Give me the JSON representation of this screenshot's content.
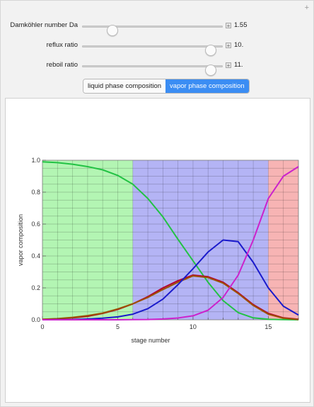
{
  "controls": {
    "damkohler": {
      "label": "Damköhler number Da",
      "value": "1.55",
      "fraction": 0.19
    },
    "reflux": {
      "label": "reflux ratio",
      "value": "10.",
      "fraction": 0.95
    },
    "reboil": {
      "label": "reboil ratio",
      "value": "11.",
      "fraction": 0.95
    }
  },
  "tabs": {
    "liquid_label": "liquid phase composition",
    "vapor_label": "vapor phase composition",
    "selected": "vapor"
  },
  "chart_data": {
    "type": "line",
    "xlabel": "stage number",
    "ylabel": "vapor composition",
    "xlim": [
      0,
      17
    ],
    "ylim": [
      0,
      1
    ],
    "xticks": [
      0,
      5,
      10,
      15
    ],
    "yticks": [
      0.0,
      0.2,
      0.4,
      0.6,
      0.8,
      1.0
    ],
    "ytick_labels": [
      "0.0",
      "0.2",
      "0.4",
      "0.6",
      "0.8",
      "1.0"
    ],
    "grid": true,
    "regions": [
      {
        "from": 0,
        "to": 6,
        "color": "#b3f5b3"
      },
      {
        "from": 6,
        "to": 15,
        "color": "#b4b4f5"
      },
      {
        "from": 15,
        "to": 17,
        "color": "#f7b4b4"
      }
    ],
    "x": [
      0,
      1,
      2,
      3,
      4,
      5,
      6,
      7,
      8,
      9,
      10,
      11,
      12,
      13,
      14,
      15,
      16,
      17
    ],
    "series": [
      {
        "color": "#22c244",
        "values": [
          0.99,
          0.985,
          0.975,
          0.96,
          0.94,
          0.905,
          0.85,
          0.76,
          0.645,
          0.505,
          0.37,
          0.235,
          0.12,
          0.045,
          0.012,
          0.003,
          0.001,
          0.0
        ]
      },
      {
        "color": "#b3002e",
        "values": [
          0.002,
          0.006,
          0.012,
          0.022,
          0.04,
          0.065,
          0.1,
          0.145,
          0.2,
          0.245,
          0.28,
          0.27,
          0.235,
          0.17,
          0.095,
          0.04,
          0.012,
          0.003
        ]
      },
      {
        "color": "#9c5200",
        "values": [
          0.003,
          0.007,
          0.015,
          0.026,
          0.042,
          0.068,
          0.1,
          0.14,
          0.19,
          0.235,
          0.275,
          0.265,
          0.23,
          0.165,
          0.09,
          0.035,
          0.01,
          0.002
        ]
      },
      {
        "color": "#1a1acc",
        "values": [
          0.0,
          0.001,
          0.002,
          0.005,
          0.01,
          0.018,
          0.035,
          0.07,
          0.13,
          0.22,
          0.32,
          0.425,
          0.5,
          0.49,
          0.36,
          0.2,
          0.085,
          0.03
        ]
      },
      {
        "color": "#cc22cc",
        "values": [
          0.0,
          0.0,
          0.0,
          0.0,
          0.0,
          0.0,
          0.001,
          0.002,
          0.005,
          0.011,
          0.025,
          0.06,
          0.14,
          0.28,
          0.5,
          0.76,
          0.9,
          0.96
        ]
      }
    ]
  }
}
